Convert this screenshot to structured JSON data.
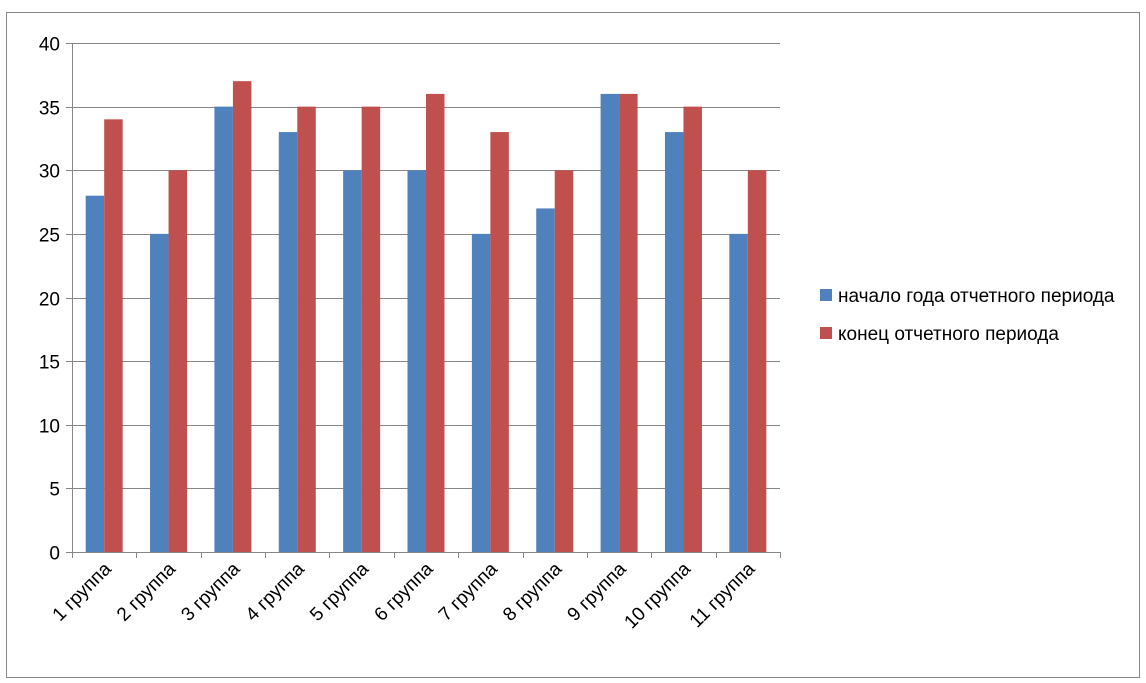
{
  "chart_data": {
    "type": "bar",
    "categories": [
      "1 группа",
      "2 группа",
      "3 группа",
      "4 группа",
      "5 группа",
      "6 группа",
      "7 группа",
      "8 группа",
      "9 группа",
      "10 группа",
      "11 группа"
    ],
    "series": [
      {
        "name": "начало года отчетного периода",
        "values": [
          28,
          25,
          35,
          33,
          30,
          30,
          25,
          27,
          36,
          33,
          25
        ],
        "color": "#4F81BD"
      },
      {
        "name": "конец отчетного периода",
        "values": [
          34,
          30,
          37,
          35,
          35,
          36,
          33,
          30,
          36,
          35,
          30
        ],
        "color": "#C0504D"
      }
    ],
    "title": "",
    "xlabel": "",
    "ylabel": "",
    "ylim": [
      0,
      40
    ],
    "yticks": [
      0,
      5,
      10,
      15,
      20,
      25,
      30,
      35,
      40
    ],
    "grid": true,
    "legend_position": "right"
  }
}
